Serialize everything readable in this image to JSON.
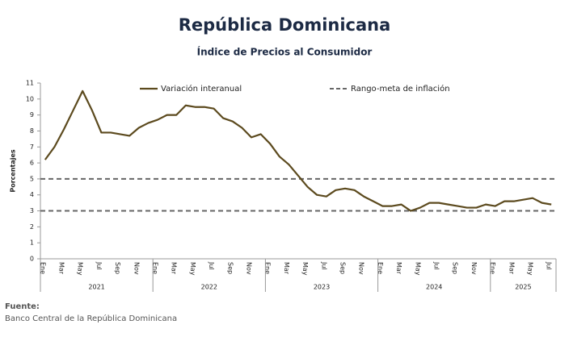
{
  "chart_data": {
    "type": "line",
    "title": "República Dominicana",
    "subtitle": "Índice de Precios al Consumidor",
    "y_label": "Porcentajes",
    "categories": [
      "Ene",
      null,
      "Mar",
      null,
      "May",
      null,
      "Jul",
      null,
      "Sep",
      null,
      "Nov",
      null,
      "Ene",
      null,
      "Mar",
      null,
      "May",
      null,
      "Jul",
      null,
      "Sep",
      null,
      "Nov",
      null,
      "Ene",
      null,
      "Mar",
      null,
      "May",
      null,
      "Jul",
      null,
      "Sep",
      null,
      "Nov",
      null,
      "Ene",
      null,
      "Mar",
      null,
      "May",
      null,
      "Jul",
      null,
      "Sep",
      null,
      "Nov",
      null,
      "Ene",
      null,
      "Mar",
      null,
      "May",
      null,
      "Jul"
    ],
    "years": [
      "2021",
      "2022",
      "2023",
      "2024",
      "2025"
    ],
    "series": [
      {
        "name": "Variación interanual",
        "color": "#5c4a1e",
        "values": [
          6.2,
          7.0,
          8.1,
          9.3,
          10.5,
          9.3,
          7.9,
          7.9,
          7.8,
          7.7,
          8.2,
          8.5,
          8.7,
          9.0,
          9.0,
          9.6,
          9.5,
          9.5,
          9.4,
          8.8,
          8.6,
          8.2,
          7.6,
          7.8,
          7.2,
          6.4,
          5.9,
          5.2,
          4.5,
          4.0,
          3.9,
          4.3,
          4.4,
          4.3,
          3.9,
          3.6,
          3.3,
          3.3,
          3.4,
          3.0,
          3.2,
          3.5,
          3.5,
          3.4,
          3.3,
          3.2,
          3.2,
          3.4,
          3.3,
          3.6,
          3.6,
          3.7,
          3.8,
          3.5,
          3.4
        ]
      }
    ],
    "target_name": "Rango-meta de inflación",
    "target_band": [
      3,
      5
    ],
    "target_color": "#666666",
    "ylim": [
      0,
      11
    ],
    "yticks": [
      0,
      1,
      2,
      3,
      4,
      5,
      6,
      7,
      8,
      9,
      10,
      11
    ],
    "source_label": "Fuente:",
    "source": "Banco Central de la República Dominicana"
  }
}
